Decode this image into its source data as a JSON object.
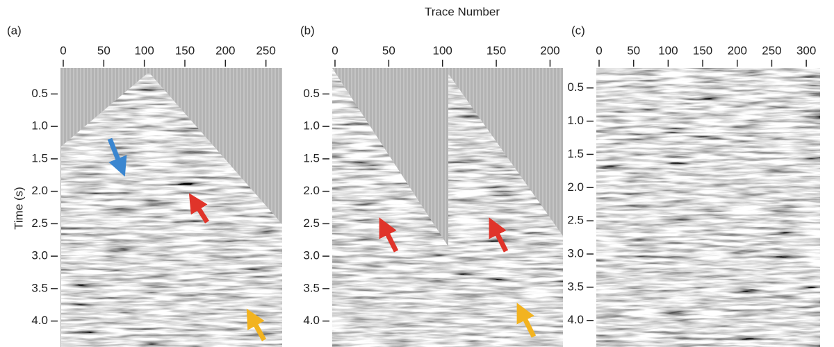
{
  "x_label": "Trace Number",
  "y_label": "Time (s)",
  "chart_data": [
    {
      "type": "image",
      "label": "(a)",
      "xlim": [
        0,
        270
      ],
      "xticks": [
        0,
        50,
        100,
        150,
        200,
        250
      ],
      "ylim": [
        0.1,
        4.4
      ],
      "yticks": [
        0.5,
        {
          "value": 1,
          "label": "1.0"
        },
        1.5,
        {
          "value": 2,
          "label": "2.0"
        },
        2.5,
        {
          "value": 3,
          "label": "3.0"
        },
        3.5,
        {
          "value": 4,
          "label": "4.0"
        }
      ]
    },
    {
      "type": "image",
      "label": "(b)",
      "xlim": [
        0,
        212
      ],
      "xticks": [
        0,
        50,
        100,
        150,
        200
      ],
      "ylim": [
        0.1,
        4.4
      ],
      "yticks": [
        0.5,
        {
          "value": 1,
          "label": "1.0"
        },
        1.5,
        {
          "value": 2,
          "label": "2.0"
        },
        2.5,
        {
          "value": 3,
          "label": "3.0"
        },
        3.5,
        {
          "value": 4,
          "label": "4.0"
        }
      ]
    },
    {
      "type": "image",
      "label": "(c)",
      "xlim": [
        0,
        320
      ],
      "xticks": [
        0,
        50,
        100,
        150,
        200,
        250,
        300
      ],
      "ylim": [
        0.2,
        4.4
      ],
      "yticks": [
        0.5,
        {
          "value": 1,
          "label": "1.0"
        },
        1.5,
        {
          "value": 2,
          "label": "2.0"
        },
        2.5,
        {
          "value": 3,
          "label": "3.0"
        },
        3.5,
        {
          "value": 4,
          "label": "4.0"
        }
      ]
    }
  ]
}
